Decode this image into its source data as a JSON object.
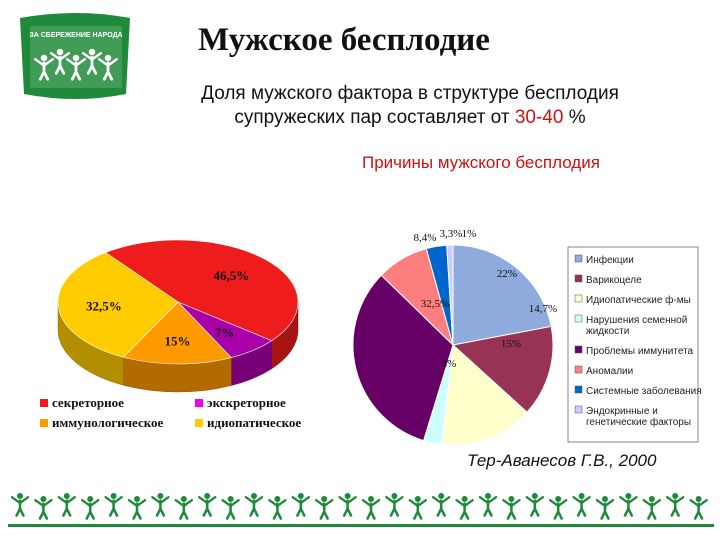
{
  "logo": {
    "text": "ЗА СБЕРЕЖЕНИЕ НАРОДА",
    "colors": {
      "green": "#1f8a3a",
      "white": "#ffffff"
    }
  },
  "title": "Мужское бесплодие",
  "subtitle": {
    "line1": "Доля мужского фактора в структуре бесплодия",
    "line2_prefix": "супружеских пар составляет  от ",
    "line2_value": "30-40",
    "line2_suffix": " %"
  },
  "causes_heading": "Причины мужского бесплодия",
  "source": "Тер-Аванесов Г.В., 2000",
  "chart_data": [
    {
      "type": "pie",
      "style": "3d",
      "slices": [
        {
          "label": "секреторное",
          "value": 46.5,
          "label_text": "46,5%",
          "color": "#ee1c1c"
        },
        {
          "label": "экскреторное",
          "value": 7,
          "label_text": "7%",
          "color": "#aa00aa"
        },
        {
          "label": "иммунологическое",
          "value": 15,
          "label_text": "15%",
          "color": "#ff9900"
        },
        {
          "label": "идиопатическое",
          "value": 32.5,
          "label_text": "32,5%",
          "color": "#ffcc00"
        }
      ],
      "legend": [
        {
          "label": "секреторное",
          "color": "#ee1c1c"
        },
        {
          "label": "экскреторное",
          "color": "#ee00ee"
        },
        {
          "label": "иммунологическое",
          "color": "#ff9900"
        },
        {
          "label": "идиопатическое",
          "color": "#ffcc00"
        }
      ],
      "legend_placement": "bottom"
    },
    {
      "type": "pie",
      "slices": [
        {
          "label": "Инфекции",
          "value": 22,
          "label_text": "22%",
          "color": "#8faadc"
        },
        {
          "label": "Варикоцеле",
          "value": 14.7,
          "label_text": "14,7%",
          "color": "#993355"
        },
        {
          "label": "Идиопатические ф-мы",
          "value": 15,
          "label_text": "15%",
          "color": "#ffffcc"
        },
        {
          "label": "Нарушения семенной жидкости",
          "value": 3,
          "label_text": "3%",
          "color": "#ccffff"
        },
        {
          "label": "Проблемы иммунитета",
          "value": 32.5,
          "label_text": "32,5%",
          "color": "#660066"
        },
        {
          "label": "Аномалии",
          "value": 8.4,
          "label_text": "8,4%",
          "color": "#ff7f7f"
        },
        {
          "label": "Системные заболевания",
          "value": 3.3,
          "label_text": "3,3%",
          "color": "#0066cc"
        },
        {
          "label": "Эндокринные и генетические факторы",
          "value": 1,
          "label_text": "1%",
          "color": "#ccccff"
        }
      ],
      "legend_placement": "right"
    }
  ],
  "legend2_lines": [
    [
      "Инфекции"
    ],
    [
      "Варикоцеле"
    ],
    [
      "Идиопатические ф-мы"
    ],
    [
      "Нарушения семенной",
      "жидкости"
    ],
    [
      "Проблемы иммунитета"
    ],
    [
      "Аномалии"
    ],
    [
      "Системные заболевания"
    ],
    [
      "Эндокринные и",
      "генетические факторы"
    ]
  ]
}
